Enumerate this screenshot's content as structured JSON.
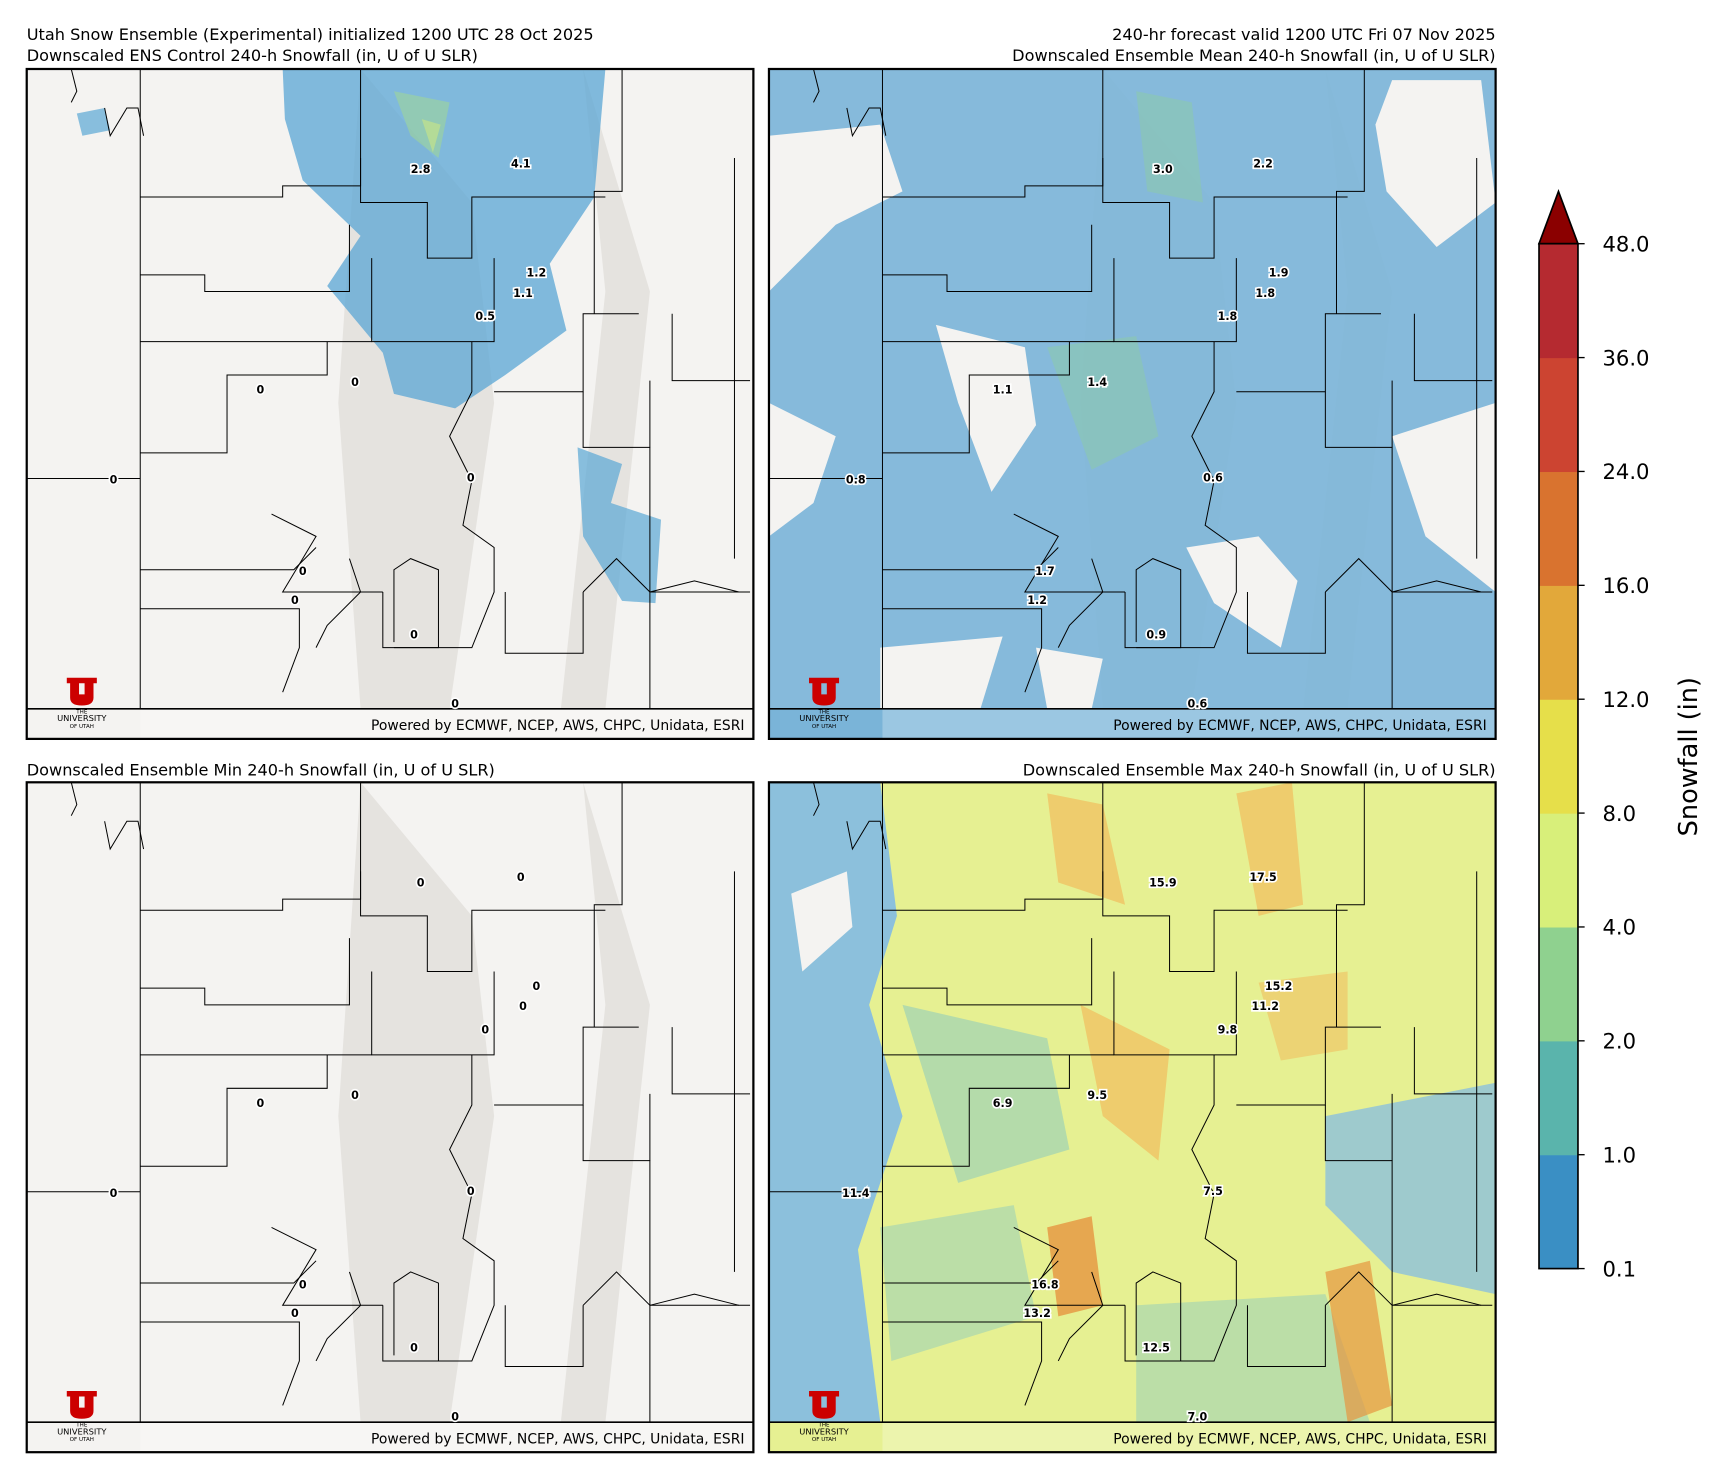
{
  "header": {
    "title": "Utah Snow Ensemble (Experimental) initialized 1200 UTC 28 Oct 2025",
    "valid": "240-hr forecast valid 1200 UTC Fri 07 Nov 2025"
  },
  "credit": "Powered by ECMWF, NCEP, AWS, CHPC, Unidata, ESRI",
  "logo": {
    "line1": "THE",
    "line2": "UNIVERSITY",
    "line3": "OF UTAH"
  },
  "panels": [
    {
      "title": "Downscaled ENS Control 240-h Snowfall (in, U of U SLR)",
      "values": [
        2.8,
        4.1,
        1.2,
        1.1,
        0.5,
        0,
        0,
        0,
        0,
        0,
        0,
        0,
        0
      ]
    },
    {
      "title": "Downscaled Ensemble Mean 240-h Snowfall (in, U of U SLR)",
      "values": [
        3,
        2.2,
        1.9,
        1.8,
        1.8,
        1.1,
        1.4,
        0.8,
        0.6,
        1.7,
        1.2,
        0.9,
        0.6
      ],
      "value_labels": [
        "3.0",
        "2.2",
        "1.9",
        "1.8",
        "1.8",
        "1.1",
        "1.4",
        "0.8",
        "0.6",
        "1.7",
        "1.2",
        "0.9",
        "0.6"
      ]
    },
    {
      "title": "Downscaled Ensemble Min 240-h Snowfall (in, U of U SLR)",
      "values": [
        0,
        0,
        0,
        0,
        0,
        0,
        0,
        0,
        0,
        0,
        0,
        0,
        0
      ]
    },
    {
      "title": "Downscaled Ensemble Max 240-h Snowfall (in, U of U SLR)",
      "values": [
        15.9,
        17.5,
        15.2,
        11.2,
        9.8,
        6.9,
        9.5,
        11.4,
        7.5,
        16.8,
        13.2,
        12.5,
        7
      ],
      "value_labels": [
        "15.9",
        "17.5",
        "15.2",
        "11.2",
        "9.8",
        "6.9",
        "9.5",
        "11.4",
        "7.5",
        "16.8",
        "13.2",
        "12.5",
        "7.0"
      ]
    }
  ],
  "colorbar": {
    "label": "Snowfall (in)",
    "ticks": [
      0.1,
      {
        "value": 1,
        "label": "1.0"
      },
      {
        "value": 2,
        "label": "2.0"
      },
      {
        "value": 4,
        "label": "4.0"
      },
      {
        "value": 8,
        "label": "8.0"
      },
      {
        "value": 12,
        "label": "12.0"
      },
      {
        "value": 16,
        "label": "16.0"
      },
      {
        "value": 24,
        "label": "24.0"
      },
      {
        "value": 36,
        "label": "36.0"
      },
      {
        "value": 48,
        "label": "48.0"
      }
    ],
    "colors": [
      "#3a8fc4",
      "#5ab4ac",
      "#8fd18f",
      "#d8ef7a",
      "#e6df4a",
      "#e2a83a",
      "#d9732f",
      "#cc4431",
      "#b52a30"
    ],
    "extend_color": "#8b0000"
  }
}
